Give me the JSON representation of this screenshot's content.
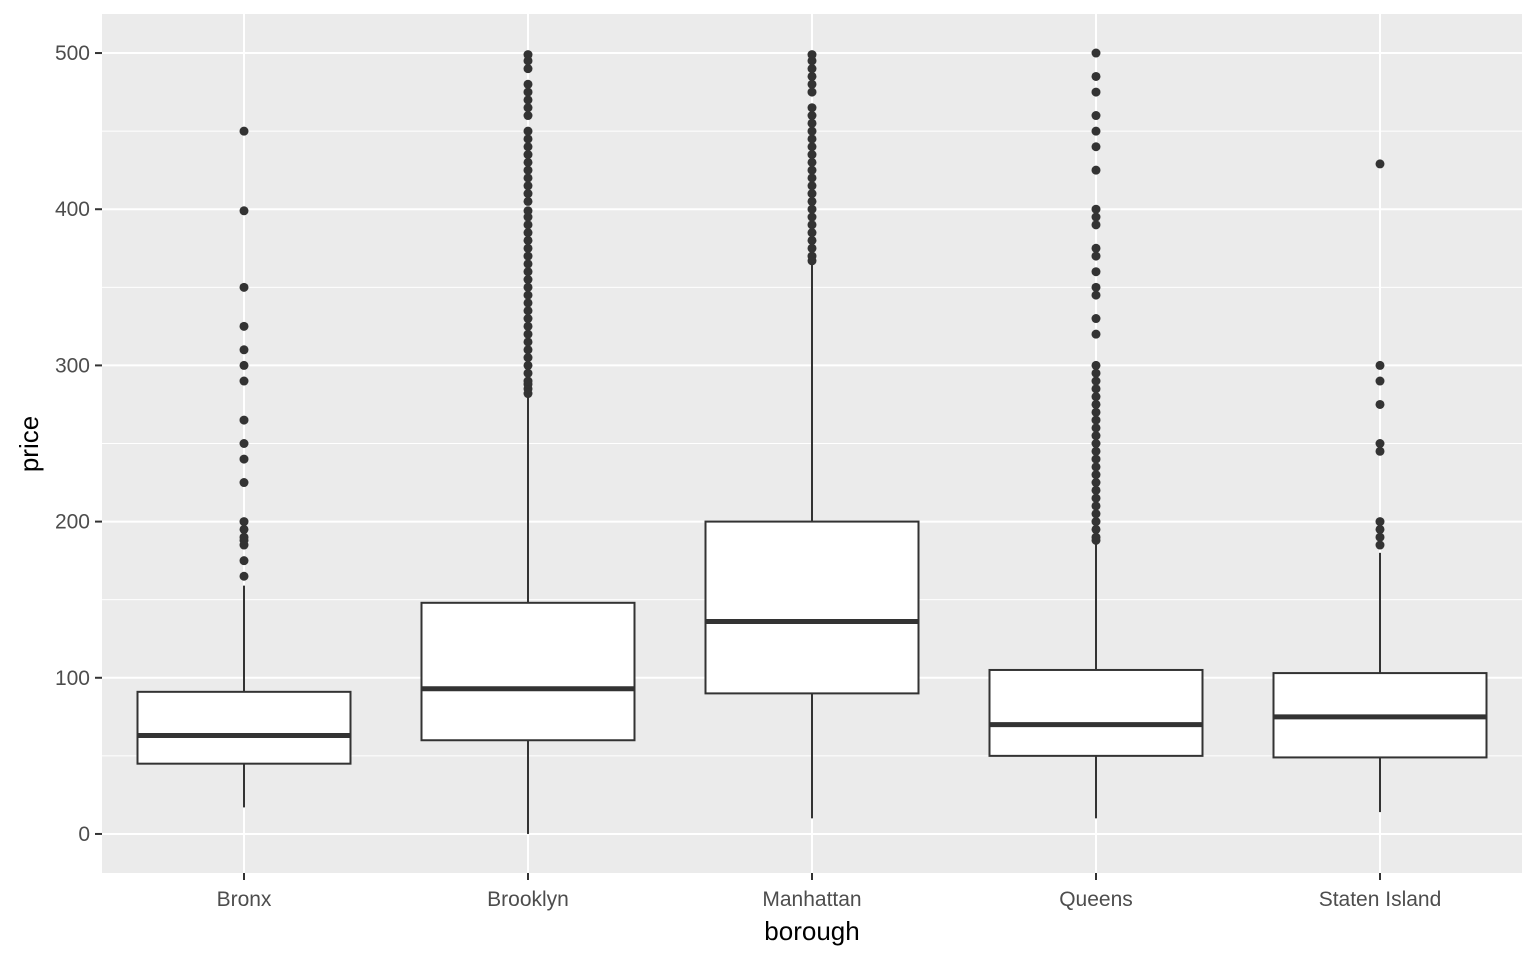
{
  "chart_data": {
    "type": "box",
    "xlabel": "borough",
    "ylabel": "price",
    "ylim": [
      -25,
      525
    ],
    "y_ticks": [
      0,
      100,
      200,
      300,
      400,
      500
    ],
    "y_tick_labels": [
      "0",
      "100",
      "200",
      "300",
      "400",
      "500"
    ],
    "grid": true,
    "colors": {
      "panel": "#ebebeb",
      "grid": "#ffffff",
      "box_fill": "#ffffff",
      "line": "#333333",
      "tick_text": "#4d4d4d"
    },
    "categories": [
      "Bronx",
      "Brooklyn",
      "Manhattan",
      "Queens",
      "Staten Island"
    ],
    "boxes": [
      {
        "category": "Bronx",
        "whisker_low": 17,
        "q1": 45,
        "median": 63,
        "q3": 91,
        "whisker_high": 159,
        "outliers": [
          165,
          175,
          185,
          188,
          190,
          195,
          200,
          225,
          240,
          250,
          265,
          290,
          300,
          310,
          325,
          350,
          399,
          450
        ]
      },
      {
        "category": "Brooklyn",
        "whisker_low": 0,
        "q1": 60,
        "median": 93,
        "q3": 148,
        "whisker_high": 280,
        "outliers": [
          282,
          285,
          288,
          290,
          295,
          300,
          305,
          310,
          315,
          320,
          325,
          330,
          335,
          340,
          345,
          350,
          355,
          360,
          365,
          370,
          375,
          380,
          385,
          390,
          395,
          399,
          405,
          410,
          415,
          420,
          425,
          430,
          435,
          440,
          445,
          450,
          460,
          465,
          470,
          475,
          480,
          490,
          495,
          499
        ]
      },
      {
        "category": "Manhattan",
        "whisker_low": 10,
        "q1": 90,
        "median": 136,
        "q3": 200,
        "whisker_high": 365,
        "outliers": [
          367,
          370,
          375,
          380,
          385,
          390,
          395,
          400,
          405,
          410,
          415,
          420,
          425,
          430,
          435,
          440,
          445,
          450,
          455,
          460,
          465,
          475,
          480,
          485,
          490,
          495,
          499
        ]
      },
      {
        "category": "Queens",
        "whisker_low": 10,
        "q1": 50,
        "median": 70,
        "q3": 105,
        "whisker_high": 186,
        "outliers": [
          188,
          190,
          195,
          200,
          205,
          210,
          215,
          220,
          225,
          230,
          235,
          240,
          245,
          250,
          255,
          260,
          265,
          270,
          275,
          280,
          285,
          290,
          295,
          300,
          320,
          330,
          345,
          350,
          360,
          370,
          375,
          390,
          395,
          400,
          425,
          440,
          450,
          460,
          475,
          485,
          500
        ]
      },
      {
        "category": "Staten Island",
        "whisker_low": 14,
        "q1": 49,
        "median": 75,
        "q3": 103,
        "whisker_high": 180,
        "outliers": [
          185,
          190,
          195,
          200,
          245,
          250,
          275,
          290,
          300,
          429
        ]
      }
    ]
  }
}
